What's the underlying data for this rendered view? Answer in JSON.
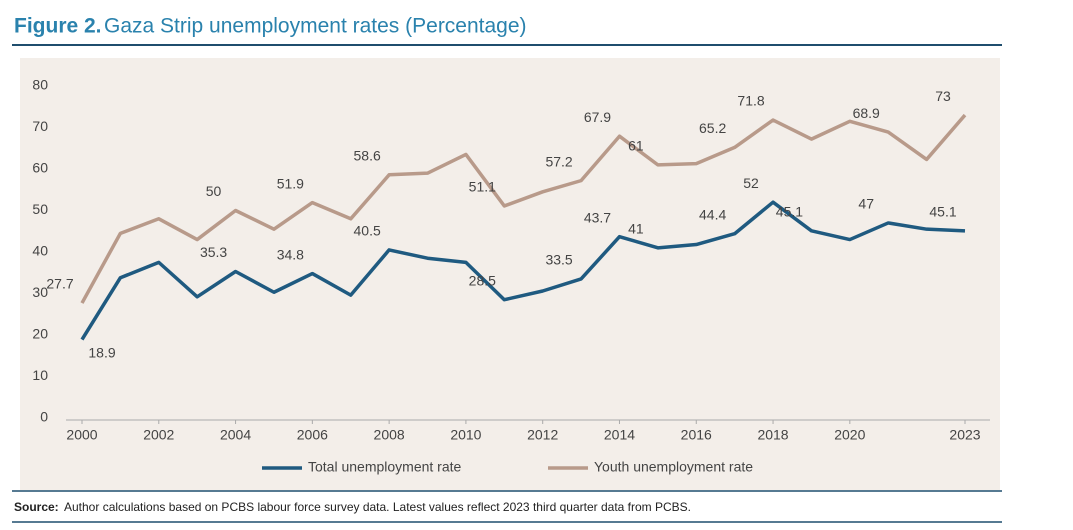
{
  "chart_data": {
    "type": "line",
    "title_prefix": "Figure 2.",
    "title": "Gaza Strip unemployment rates (Percentage)",
    "source_label": "Source:",
    "source": "Author calculations based on PCBS labour force survey data. Latest values reflect 2023 third quarter data from PCBS.",
    "x": [
      2000,
      2001,
      2002,
      2003,
      2004,
      2005,
      2006,
      2007,
      2008,
      2009,
      2010,
      2011,
      2012,
      2013,
      2014,
      2015,
      2016,
      2017,
      2018,
      2019,
      2020,
      2021,
      2022,
      2023
    ],
    "series": [
      {
        "name": "Total unemployment rate",
        "color": "#1f5a80",
        "values": [
          18.9,
          33.8,
          37.5,
          29.2,
          35.3,
          30.3,
          34.8,
          29.6,
          40.5,
          38.5,
          37.5,
          28.5,
          30.6,
          33.5,
          43.7,
          41,
          41.8,
          44.4,
          52,
          45.1,
          43,
          47,
          45.5,
          45.1
        ],
        "value_labels": [
          "18.9",
          null,
          null,
          null,
          "35.3",
          null,
          "34.8",
          null,
          "40.5",
          null,
          null,
          "28.5",
          null,
          "33.5",
          "43.7",
          "41",
          null,
          "44.4",
          "52",
          "45.1",
          null,
          "47",
          null,
          "45.1"
        ]
      },
      {
        "name": "Youth unemployment rate",
        "color": "#b89a8a",
        "values": [
          27.7,
          44.5,
          48,
          43,
          50,
          45.5,
          51.9,
          48,
          58.6,
          59,
          63.5,
          51.1,
          54.5,
          57.2,
          67.9,
          61,
          61.3,
          65.2,
          71.8,
          67.2,
          71.5,
          68.9,
          62.3,
          73
        ],
        "value_labels": [
          "27.7",
          null,
          null,
          null,
          "50",
          null,
          "51.9",
          null,
          "58.6",
          null,
          null,
          "51.1",
          null,
          "57.2",
          "67.9",
          "61",
          null,
          "65.2",
          "71.8",
          null,
          null,
          "68.9",
          null,
          "73"
        ]
      }
    ],
    "xlim": [
      2000,
      2023
    ],
    "xticks": [
      2000,
      2002,
      2004,
      2006,
      2008,
      2010,
      2012,
      2014,
      2016,
      2018,
      2020,
      2023
    ],
    "ylim": [
      0,
      80
    ],
    "yticks": [
      0,
      10,
      20,
      30,
      40,
      50,
      60,
      70,
      80
    ],
    "grid": false
  }
}
